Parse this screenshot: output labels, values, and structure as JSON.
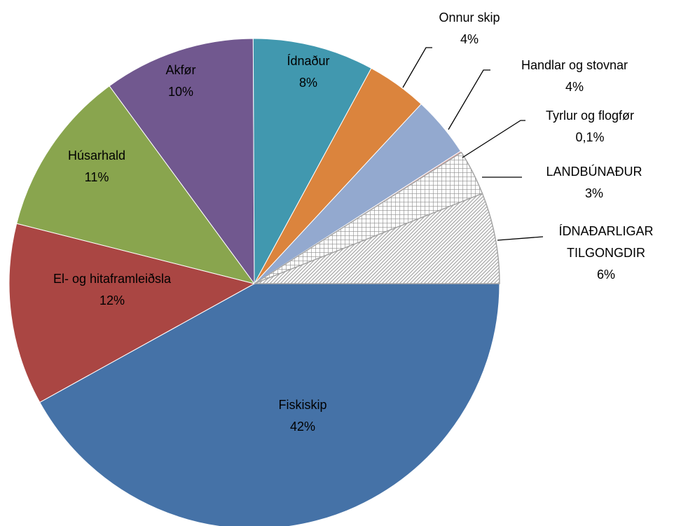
{
  "chart_data": {
    "type": "pie",
    "categories": [
      "Fiskiskip",
      "El- og hitaframleiðsla",
      "Húsarhald",
      "Akfør",
      "Ídnaður",
      "Onnur skip",
      "Handlar og stovnar",
      "Tyrlur og flogfør",
      "LANDBÚNAÐUR",
      "ÍDNAÐARLIGAR TILGONGDIR"
    ],
    "values": [
      42,
      12,
      11,
      10,
      8,
      4,
      4,
      0.1,
      3,
      6
    ],
    "value_labels": [
      "42%",
      "12%",
      "11%",
      "10%",
      "8%",
      "4%",
      "4%",
      "0,1%",
      "3%",
      "6%"
    ],
    "colors": [
      "#4572a7",
      "#aa4643",
      "#89a54e",
      "#71588f",
      "#4198af",
      "#db843d",
      "#93a9cf",
      "#d19392",
      "#a6a6a6",
      "#a6a6a6"
    ],
    "hatch": [
      null,
      null,
      null,
      null,
      null,
      null,
      null,
      null,
      "cross",
      "diagonal"
    ]
  }
}
